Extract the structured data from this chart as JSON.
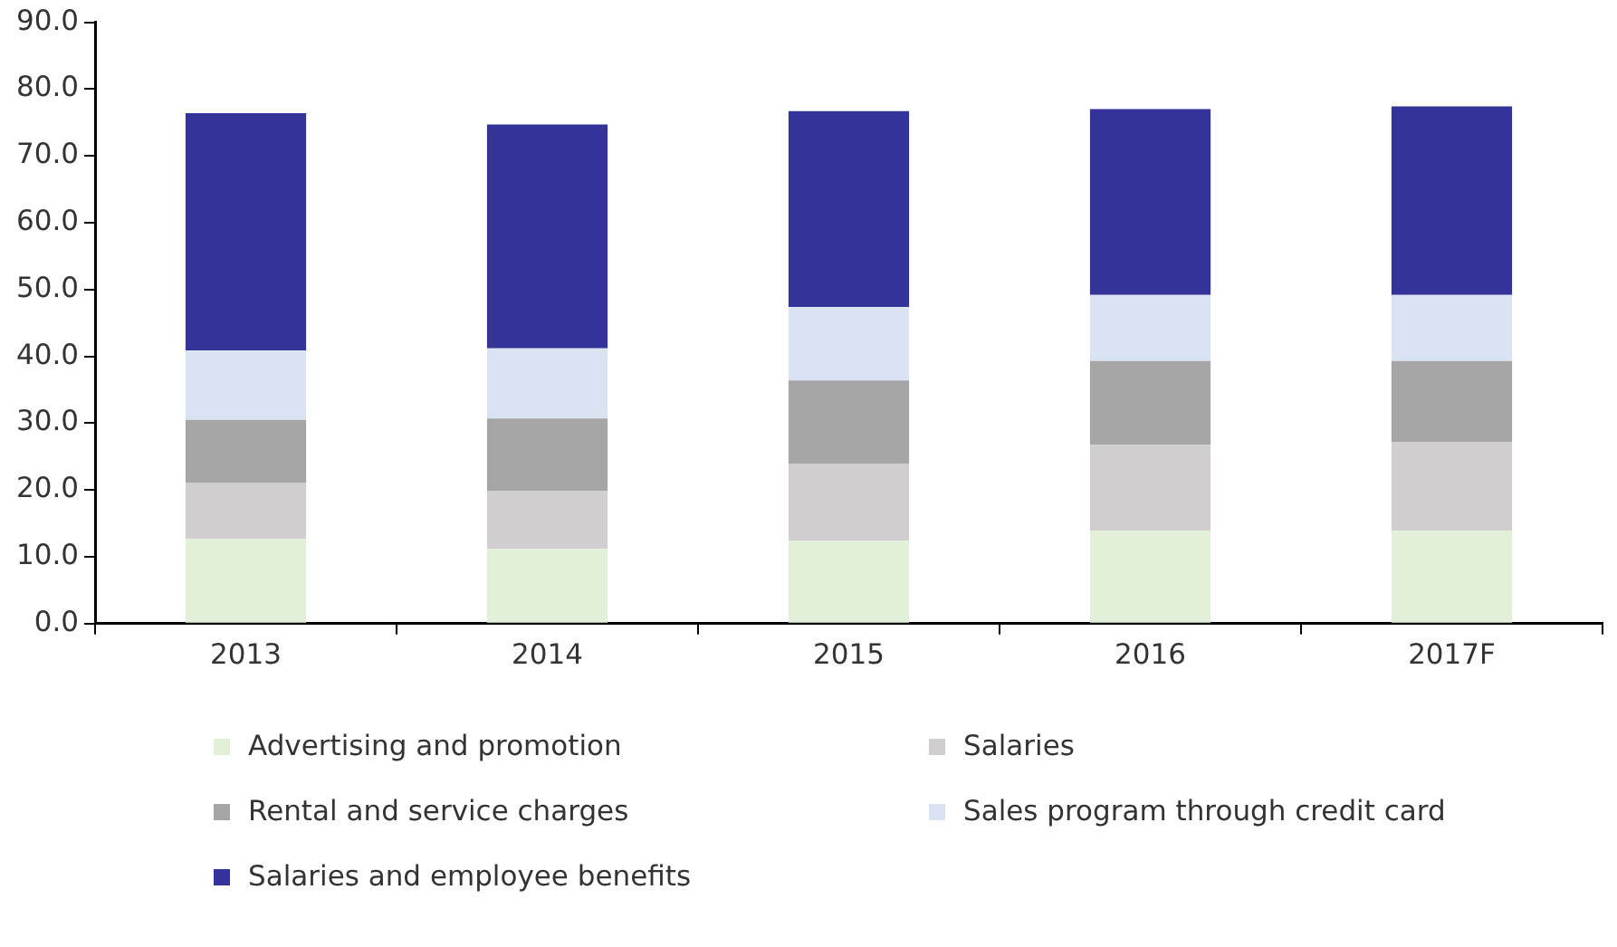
{
  "chart_data": {
    "type": "bar",
    "stacked": true,
    "categories": [
      "2013",
      "2014",
      "2015",
      "2016",
      "2017F"
    ],
    "series": [
      {
        "name": "Advertising and promotion",
        "color": "#e2efd9",
        "values": [
          12.7,
          11.2,
          12.4,
          13.9,
          13.9
        ]
      },
      {
        "name": "Salaries",
        "color": "#d0cece",
        "values": [
          8.4,
          8.7,
          11.5,
          12.9,
          13.3
        ]
      },
      {
        "name": "Rental and service charges",
        "color": "#a5a5a5",
        "values": [
          9.4,
          10.8,
          12.5,
          12.5,
          12.1
        ]
      },
      {
        "name": "Sales program through credit card",
        "color": "#dae3f3",
        "values": [
          10.4,
          10.5,
          11.0,
          9.9,
          9.9
        ]
      },
      {
        "name": "Salaries and employee benefits",
        "color": "#333399",
        "values": [
          35.5,
          33.5,
          29.3,
          27.8,
          28.2
        ]
      }
    ],
    "ylim": [
      0,
      90
    ],
    "yticks": [
      {
        "value": 0,
        "label": "0.0"
      },
      {
        "value": 10,
        "label": "10.0"
      },
      {
        "value": 20,
        "label": "20.0"
      },
      {
        "value": 30,
        "label": "30.0"
      },
      {
        "value": 40,
        "label": "40.0"
      },
      {
        "value": 50,
        "label": "50.0"
      },
      {
        "value": 60,
        "label": "60.0"
      },
      {
        "value": 70,
        "label": "70.0"
      },
      {
        "value": 80,
        "label": "80.0"
      },
      {
        "value": 90,
        "label": "90.0"
      }
    ],
    "grid": false,
    "legend": "bottom"
  }
}
